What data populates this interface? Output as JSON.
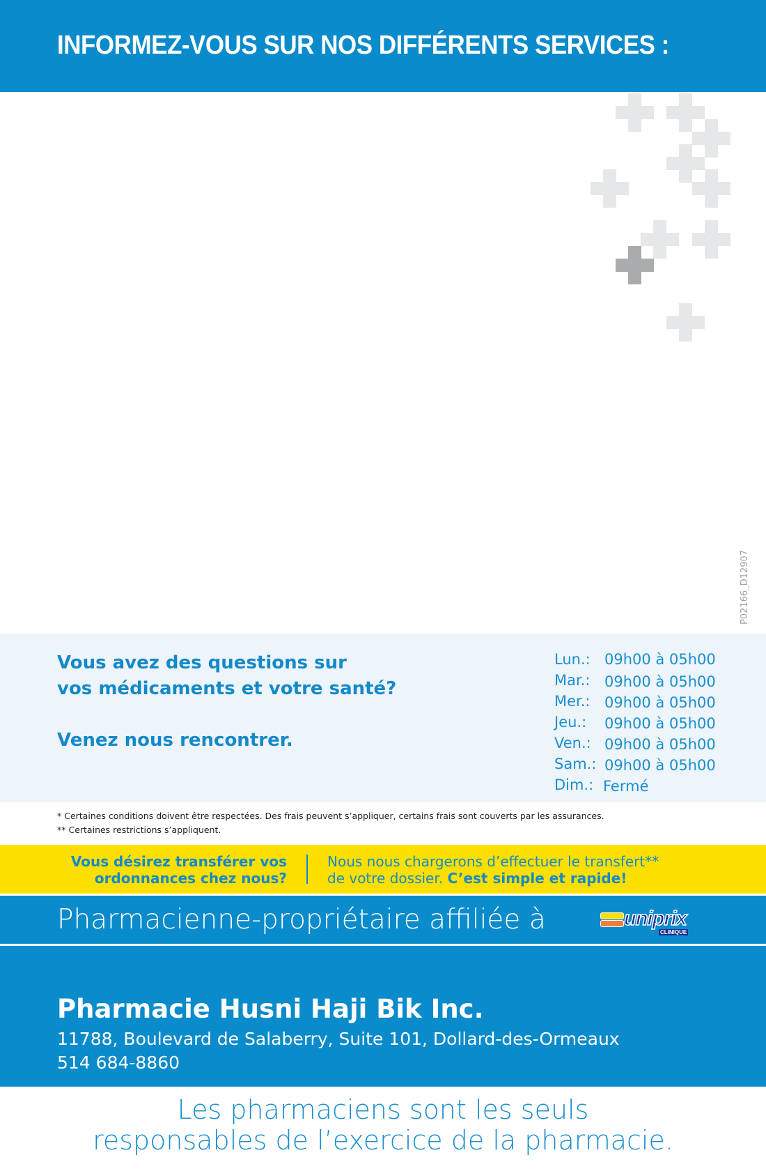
{
  "header": {
    "title": "INFORMEZ-VOUS SUR NOS DIFFÉRENTS SERVICES :"
  },
  "code": "P02166_D12907",
  "info": {
    "question_line1": "Vous avez des questions sur",
    "question_line2": "vos médicaments et votre santé?",
    "invite": "Venez nous rencontrer.",
    "hours": [
      {
        "day": "Lun.:",
        "time": "09h00 à 05h00"
      },
      {
        "day": "Mar.:",
        "time": "09h00 à 05h00"
      },
      {
        "day": "Mer.:",
        "time": "09h00 à 05h00"
      },
      {
        "day": "Jeu.:",
        "time": "09h00 à 05h00"
      },
      {
        "day": "Ven.:",
        "time": "09h00 à 05h00"
      },
      {
        "day": "Sam.:",
        "time": "09h00 à 05h00"
      },
      {
        "day": "Dim.:",
        "time": "Fermé"
      }
    ]
  },
  "notes": [
    "* Certaines conditions doivent être respectées. Des frais peuvent s’appliquer, certains frais sont couverts par les assurances.",
    "** Certaines restrictions s’appliquent."
  ],
  "transfer": {
    "left_line1": "Vous désirez transférer vos",
    "left_line2": "ordonnances chez nous?",
    "right_line1": "Nous nous chargerons d’effectuer le transfert**",
    "right_line2": "de votre dossier. ",
    "right_bold": "C’est simple et rapide!"
  },
  "affiliation": {
    "text": "Pharmacienne-propriétaire affiliée à",
    "logo_text": "uniprix",
    "logo_sub": "CLINIQUE"
  },
  "pharmacy": {
    "name": "Pharmacie Husni Haji Bik Inc.",
    "address": "11788, Boulevard de Salaberry, Suite 101,  Dollard-des-Ormeaux",
    "phone": "514 684-8860"
  },
  "tagline": {
    "line1": "Les pharmaciens sont les seuls",
    "line2": "responsables de l’exercice de la pharmacie."
  },
  "colors": {
    "brand_blue": "#0a8bcb",
    "yellow": "#fde000",
    "panel": "#edf4fa"
  }
}
